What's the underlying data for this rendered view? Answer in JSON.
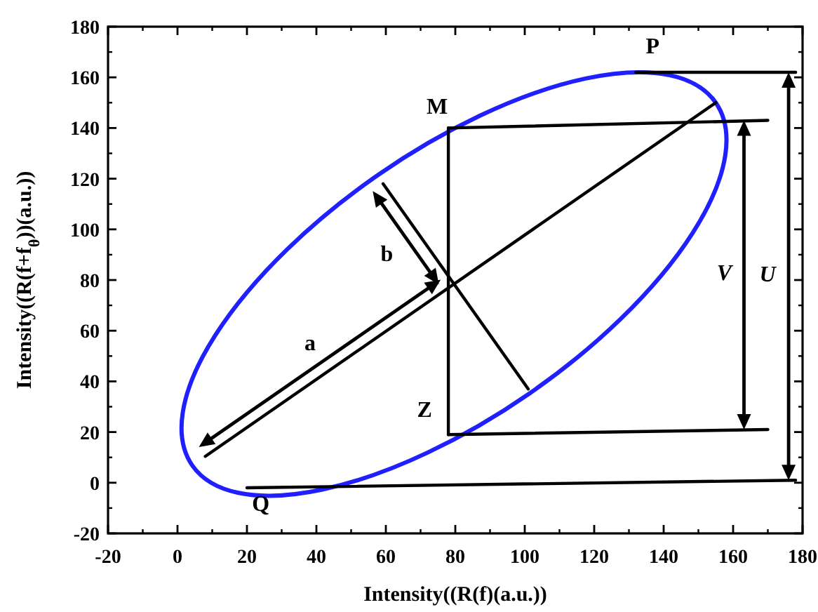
{
  "chart_data": {
    "type": "line",
    "xlabel": "Intensity((R(f)(a.u.))",
    "ylabel": "Intensity((R(f+f$_{θ}$))(a.u.))",
    "xlim": [
      -20,
      180
    ],
    "ylim": [
      -20,
      180
    ],
    "xticks": [
      -20,
      0,
      20,
      40,
      60,
      80,
      100,
      120,
      140,
      160,
      180
    ],
    "yticks": [
      -20,
      0,
      20,
      40,
      60,
      80,
      100,
      120,
      140,
      160,
      180
    ],
    "grid": false,
    "line_style": "solid",
    "series": [
      {
        "color": "#000000",
        "x": [
          8,
          155
        ],
        "values": [
          10.4,
          150
        ]
      },
      {
        "color": "#000000",
        "x": [
          59.2,
          101
        ],
        "values": [
          118,
          37
        ]
      },
      {
        "color": "#000000",
        "x": [
          78,
          78
        ],
        "values": [
          140,
          19
        ]
      },
      {
        "color": "#000000",
        "x": [
          78,
          170
        ],
        "values": [
          140,
          143
        ]
      },
      {
        "color": "#000000",
        "x": [
          78,
          170
        ],
        "values": [
          19,
          21
        ]
      },
      {
        "color": "#000000",
        "x": [
          132,
          178
        ],
        "values": [
          162,
          162
        ]
      },
      {
        "color": "#000000",
        "x": [
          20,
          178
        ],
        "values": [
          -2,
          1
        ]
      }
    ],
    "annotations": [
      {
        "text": "P",
        "x": 136.8,
        "y": 162
      },
      {
        "text": "M",
        "x": 78,
        "y": 140
      },
      {
        "text": "Z",
        "x": 78,
        "y": 28
      },
      {
        "text": "Q",
        "x": 24,
        "y": -1.9
      },
      {
        "text": "a",
        "x": 39.8,
        "y": 40.6
      },
      {
        "text": "b",
        "x": 74,
        "y": 89.4
      },
      "V",
      "U"
    ]
  }
}
